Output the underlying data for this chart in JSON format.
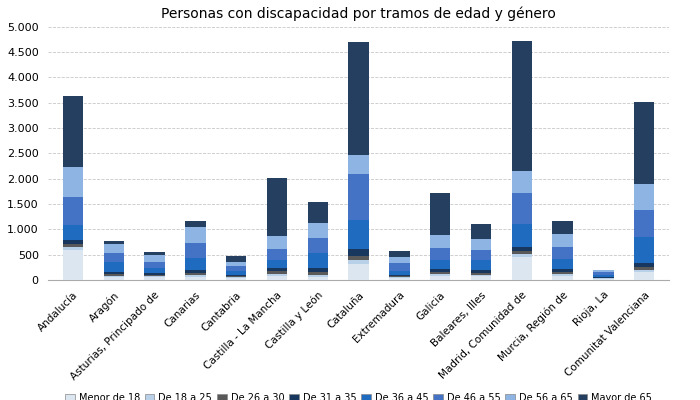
{
  "title": "Personas con discapacidad por tramos de edad y género",
  "categories": [
    "Andalucía",
    "Aragón",
    "Asturias, Principado de",
    "Canarias",
    "Cantabria",
    "Castilla - La Mancha",
    "Castilla y León",
    "Cataluña",
    "Extremadura",
    "Galicia",
    "Baleares, Illes",
    "Madrid, Comunidad de",
    "Murcia, Región de",
    "Rioja, La",
    "Comunitat Valenciana"
  ],
  "age_groups": [
    "Menor de 18",
    "De 18 a 25",
    "De 26 a 30",
    "De 31 a 35",
    "De 36 a 45",
    "De 46 a 55",
    "De 56 a 65",
    "Mayor de 65"
  ],
  "colors": [
    "#dce6f1",
    "#b8d0e8",
    "#595959",
    "#17375e",
    "#1f6bbf",
    "#4472c4",
    "#8db4e2",
    "#243f60"
  ],
  "data": [
    [
      600,
      60,
      50,
      80,
      300,
      550,
      600,
      1400
    ],
    [
      50,
      30,
      30,
      50,
      200,
      180,
      180,
      50
    ],
    [
      50,
      20,
      20,
      40,
      100,
      130,
      130,
      60
    ],
    [
      60,
      30,
      40,
      60,
      250,
      300,
      300,
      120
    ],
    [
      30,
      20,
      20,
      30,
      80,
      100,
      80,
      110
    ],
    [
      80,
      40,
      50,
      70,
      150,
      220,
      250,
      1150
    ],
    [
      60,
      40,
      50,
      80,
      300,
      300,
      300,
      420
    ],
    [
      320,
      80,
      80,
      130,
      580,
      900,
      380,
      2230
    ],
    [
      30,
      20,
      20,
      30,
      80,
      150,
      130,
      120
    ],
    [
      80,
      30,
      40,
      60,
      180,
      250,
      250,
      830
    ],
    [
      70,
      30,
      40,
      60,
      200,
      200,
      200,
      300
    ],
    [
      450,
      60,
      70,
      80,
      450,
      600,
      450,
      2550
    ],
    [
      80,
      30,
      40,
      60,
      200,
      250,
      250,
      250
    ],
    [
      20,
      10,
      10,
      20,
      40,
      50,
      40,
      0
    ],
    [
      150,
      50,
      60,
      80,
      500,
      550,
      500,
      1620
    ]
  ],
  "ylim": [
    0,
    5000
  ],
  "yticks": [
    0,
    500,
    1000,
    1500,
    2000,
    2500,
    3000,
    3500,
    4000,
    4500,
    5000
  ],
  "background_color": "#ffffff",
  "grid_color": "#c8c8c8"
}
